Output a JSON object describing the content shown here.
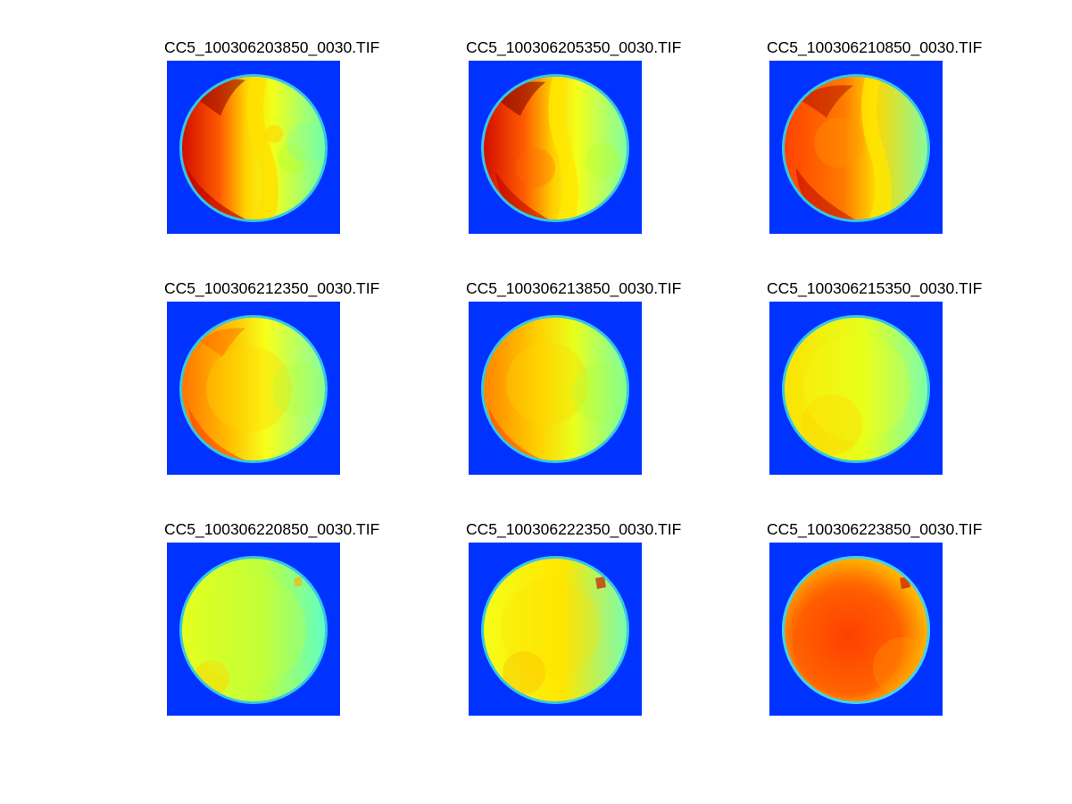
{
  "figure": {
    "panels": [
      {
        "title": "CC5_100306203850_0030.TIF",
        "colormap": "jet",
        "style": 0
      },
      {
        "title": "CC5_100306205350_0030.TIF",
        "colormap": "jet",
        "style": 1
      },
      {
        "title": "CC5_100306210850_0030.TIF",
        "colormap": "jet",
        "style": 2
      },
      {
        "title": "CC5_100306212350_0030.TIF",
        "colormap": "jet",
        "style": 3
      },
      {
        "title": "CC5_100306213850_0030.TIF",
        "colormap": "jet",
        "style": 4
      },
      {
        "title": "CC5_100306215350_0030.TIF",
        "colormap": "jet",
        "style": 5
      },
      {
        "title": "CC5_100306220850_0030.TIF",
        "colormap": "jet",
        "style": 6
      },
      {
        "title": "CC5_100306222350_0030.TIF",
        "colormap": "jet",
        "style": 7
      },
      {
        "title": "CC5_100306223850_0030.TIF",
        "colormap": "jet",
        "style": 8
      }
    ],
    "colors": {
      "background": "#0033ff",
      "rim": "#3fd0e6",
      "defect": "#5a1f10"
    }
  }
}
